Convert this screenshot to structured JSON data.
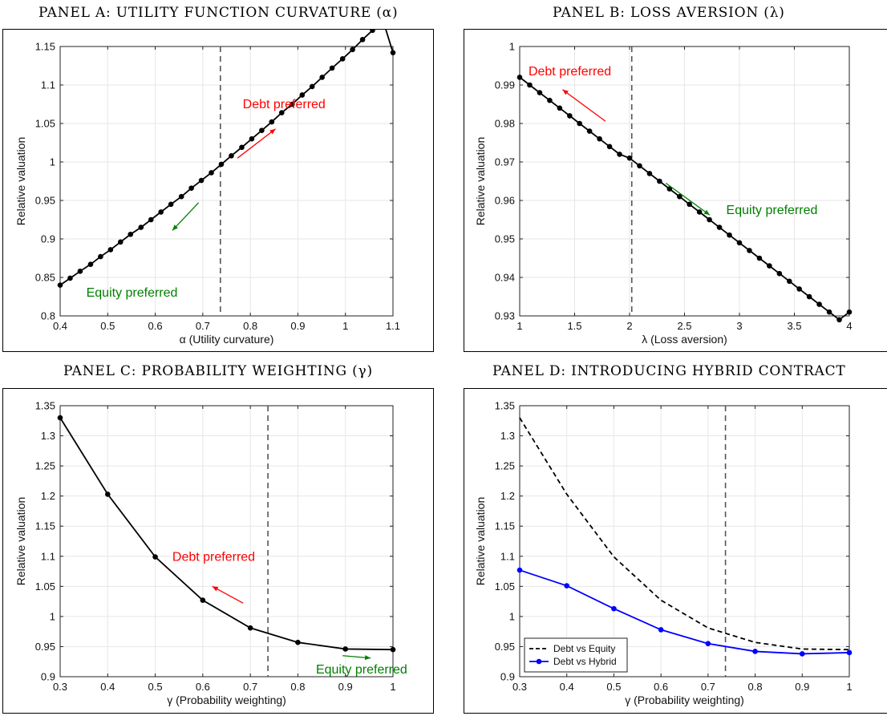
{
  "chart_data": [
    {
      "id": "A",
      "type": "line",
      "title": "PANEL A: UTILITY FUNCTION CURVATURE (α)",
      "xlabel": "α (Utility curvature)",
      "ylabel": "Relative valuation",
      "xlim": [
        0.4,
        1.1
      ],
      "ylim": [
        0.8,
        1.15
      ],
      "xticks": [
        0.4,
        0.5,
        0.6,
        0.7,
        0.8,
        0.9,
        1,
        1.1
      ],
      "yticks": [
        0.8,
        0.85,
        0.9,
        0.95,
        1,
        1.05,
        1.1,
        1.15
      ],
      "xtick_labels": [
        "0.4",
        "0.5",
        "0.6",
        "0.7",
        "0.8",
        "0.9",
        "1",
        "1.1"
      ],
      "ytick_labels": [
        "0.8",
        "0.85",
        "0.9",
        "0.95",
        "1",
        "1.05",
        "1.1",
        "1.15"
      ],
      "grid": true,
      "vline": 0.737,
      "series": [
        {
          "color": "#000000",
          "markers": true,
          "x": [
            0.4,
            0.421,
            0.442,
            0.464,
            0.485,
            0.506,
            0.527,
            0.548,
            0.57,
            0.591,
            0.612,
            0.633,
            0.655,
            0.676,
            0.697,
            0.718,
            0.739,
            0.76,
            0.782,
            0.803,
            0.824,
            0.845,
            0.866,
            0.888,
            0.909,
            0.93,
            0.951,
            0.972,
            0.994,
            1.015,
            1.036,
            1.057,
            1.079,
            1.1
          ],
          "y": [
            0.84,
            0.849,
            0.858,
            0.867,
            0.877,
            0.886,
            0.896,
            0.906,
            0.915,
            0.925,
            0.935,
            0.945,
            0.955,
            0.966,
            0.976,
            0.986,
            0.997,
            1.008,
            1.019,
            1.03,
            1.041,
            1.052,
            1.064,
            1.075,
            1.087,
            1.098,
            1.11,
            1.122,
            1.134,
            1.146,
            1.159,
            1.171,
            1.184,
            1.142
          ]
        }
      ],
      "annotations": [
        {
          "text": "Debt preferred",
          "color": "#ff0000",
          "x": 0.784,
          "y": 1.075
        },
        {
          "text": "Equity preferred",
          "color": "#008000",
          "x": 0.455,
          "y": 0.83
        }
      ],
      "arrows": [
        {
          "color": "#ff0000",
          "from": [
            0.773,
            1.005
          ],
          "to": [
            0.853,
            1.043
          ]
        },
        {
          "color": "#008000",
          "from": [
            0.691,
            0.947
          ],
          "to": [
            0.636,
            0.911
          ]
        }
      ]
    },
    {
      "id": "B",
      "type": "line",
      "title": "PANEL B: LOSS AVERSION (λ)",
      "xlabel": "λ (Loss aversion)",
      "ylabel": "Relative valuation",
      "xlim": [
        1,
        4
      ],
      "ylim": [
        0.93,
        1
      ],
      "xticks": [
        1,
        1.5,
        2,
        2.5,
        3,
        3.5,
        4
      ],
      "yticks": [
        0.93,
        0.94,
        0.95,
        0.96,
        0.97,
        0.98,
        0.99,
        1
      ],
      "xtick_labels": [
        "1",
        "1.5",
        "2",
        "2.5",
        "3",
        "3.5",
        "4"
      ],
      "ytick_labels": [
        "0.93",
        "0.94",
        "0.95",
        "0.96",
        "0.97",
        "0.98",
        "0.99",
        "1"
      ],
      "grid": true,
      "vline": 2.02,
      "series": [
        {
          "color": "#000000",
          "markers": true,
          "x": [
            1.0,
            1.091,
            1.182,
            1.273,
            1.364,
            1.455,
            1.545,
            1.636,
            1.727,
            1.818,
            1.909,
            2.0,
            2.091,
            2.182,
            2.273,
            2.364,
            2.455,
            2.545,
            2.636,
            2.727,
            2.818,
            2.909,
            3.0,
            3.091,
            3.182,
            3.273,
            3.364,
            3.455,
            3.545,
            3.636,
            3.727,
            3.818,
            3.909,
            4.0
          ],
          "y": [
            0.992,
            0.99,
            0.988,
            0.986,
            0.984,
            0.982,
            0.98,
            0.978,
            0.976,
            0.974,
            0.972,
            0.971,
            0.969,
            0.967,
            0.965,
            0.963,
            0.961,
            0.959,
            0.957,
            0.955,
            0.953,
            0.951,
            0.949,
            0.947,
            0.945,
            0.943,
            0.941,
            0.939,
            0.937,
            0.935,
            0.933,
            0.931,
            0.929,
            0.931
          ]
        }
      ],
      "annotations": [
        {
          "text": "Debt preferred",
          "color": "#ff0000",
          "x": 1.08,
          "y": 0.9935
        },
        {
          "text": "Equity preferred",
          "color": "#008000",
          "x": 2.88,
          "y": 0.9575
        }
      ],
      "arrows": [
        {
          "color": "#ff0000",
          "from": [
            1.78,
            0.9806
          ],
          "to": [
            1.39,
            0.9888
          ]
        },
        {
          "color": "#008000",
          "from": [
            2.33,
            0.9645
          ],
          "to": [
            2.73,
            0.9562
          ]
        }
      ]
    },
    {
      "id": "C",
      "type": "line",
      "title": "PANEL C: PROBABILITY WEIGHTING (γ)",
      "xlabel": "γ (Probability weighting)",
      "ylabel": "Relative valuation",
      "xlim": [
        0.3,
        1
      ],
      "ylim": [
        0.9,
        1.35
      ],
      "xticks": [
        0.3,
        0.4,
        0.5,
        0.6,
        0.7,
        0.8,
        0.9,
        1
      ],
      "yticks": [
        0.9,
        0.95,
        1,
        1.05,
        1.1,
        1.15,
        1.2,
        1.25,
        1.3,
        1.35
      ],
      "xtick_labels": [
        "0.3",
        "0.4",
        "0.5",
        "0.6",
        "0.7",
        "0.8",
        "0.9",
        "1"
      ],
      "ytick_labels": [
        "0.9",
        "0.95",
        "1",
        "1.05",
        "1.1",
        "1.15",
        "1.2",
        "1.25",
        "1.3",
        "1.35"
      ],
      "grid": true,
      "vline": 0.737,
      "series": [
        {
          "color": "#000000",
          "markers": true,
          "x": [
            0.3,
            0.4,
            0.5,
            0.6,
            0.7,
            0.8,
            0.9,
            1.0
          ],
          "y": [
            1.33,
            1.203,
            1.099,
            1.027,
            0.981,
            0.957,
            0.946,
            0.945
          ]
        }
      ],
      "annotations": [
        {
          "text": "Debt preferred",
          "color": "#ff0000",
          "x": 0.536,
          "y": 1.099
        },
        {
          "text": "Equity preferred",
          "color": "#008000",
          "x": 0.838,
          "y": 0.912
        }
      ],
      "arrows": [
        {
          "color": "#ff0000",
          "from": [
            0.685,
            1.022
          ],
          "to": [
            0.62,
            1.05
          ]
        },
        {
          "color": "#008000",
          "from": [
            0.894,
            0.935
          ],
          "to": [
            0.953,
            0.931
          ]
        }
      ]
    },
    {
      "id": "D",
      "type": "line",
      "title": "PANEL D: INTRODUCING HYBRID CONTRACT",
      "xlabel": "γ (Probability weighting)",
      "ylabel": "Relative valuation",
      "xlim": [
        0.3,
        1
      ],
      "ylim": [
        0.9,
        1.35
      ],
      "xticks": [
        0.3,
        0.4,
        0.5,
        0.6,
        0.7,
        0.8,
        0.9,
        1
      ],
      "yticks": [
        0.9,
        0.95,
        1,
        1.05,
        1.1,
        1.15,
        1.2,
        1.25,
        1.3,
        1.35
      ],
      "xtick_labels": [
        "0.3",
        "0.4",
        "0.5",
        "0.6",
        "0.7",
        "0.8",
        "0.9",
        "1"
      ],
      "ytick_labels": [
        "0.9",
        "0.95",
        "1",
        "1.05",
        "1.1",
        "1.15",
        "1.2",
        "1.25",
        "1.3",
        "1.35"
      ],
      "grid": true,
      "vline": 0.737,
      "legend": "bottom-left",
      "series": [
        {
          "name": "Debt vs Equity",
          "color": "#000000",
          "dashed": true,
          "markers": false,
          "x": [
            0.3,
            0.4,
            0.5,
            0.6,
            0.7,
            0.8,
            0.9,
            1.0
          ],
          "y": [
            1.33,
            1.203,
            1.099,
            1.027,
            0.981,
            0.957,
            0.946,
            0.945
          ]
        },
        {
          "name": "Debt vs Hybrid",
          "color": "#0000ff",
          "markers": true,
          "x": [
            0.3,
            0.4,
            0.5,
            0.6,
            0.7,
            0.8,
            0.9,
            1.0
          ],
          "y": [
            1.077,
            1.051,
            1.013,
            0.978,
            0.955,
            0.942,
            0.938,
            0.94
          ]
        }
      ],
      "annotations": [],
      "arrows": []
    }
  ]
}
